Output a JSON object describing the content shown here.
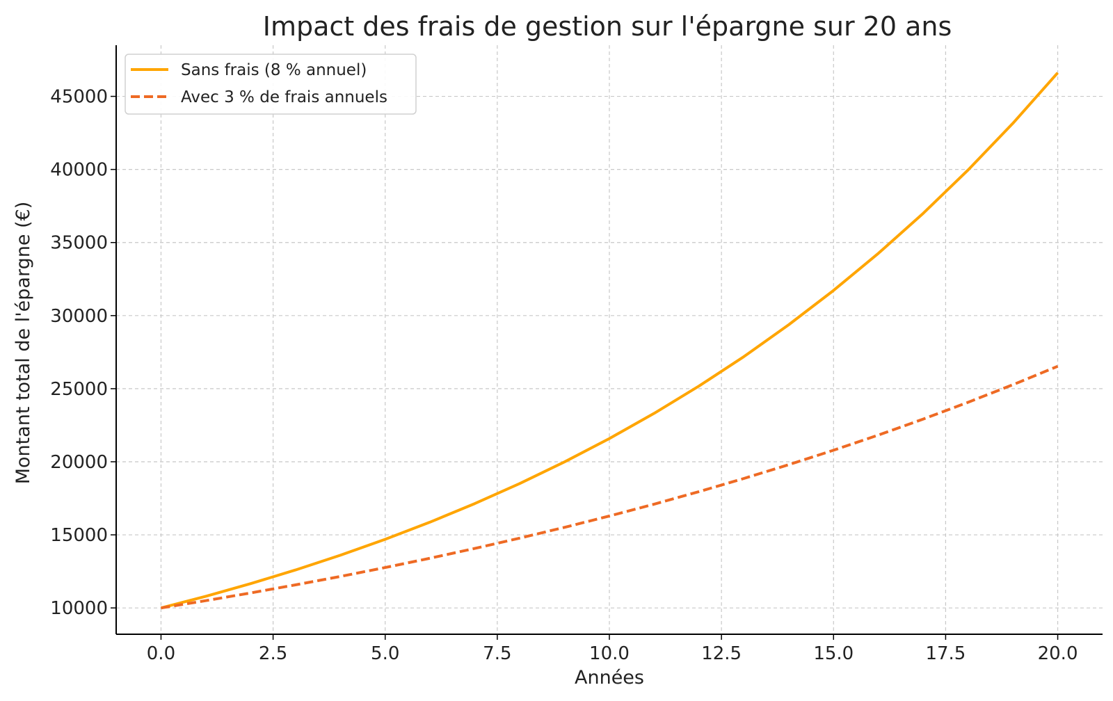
{
  "chart_data": {
    "type": "line",
    "title": "Impact des frais de gestion sur l'épargne sur 20 ans",
    "xlabel": "Années",
    "ylabel": "Montant total de l'épargne (€)",
    "xlim": [
      -1,
      21
    ],
    "ylim": [
      8200,
      48500
    ],
    "xticks": [
      0.0,
      2.5,
      5.0,
      7.5,
      10.0,
      12.5,
      15.0,
      17.5,
      20.0
    ],
    "xtick_labels": [
      "0.0",
      "2.5",
      "5.0",
      "7.5",
      "10.0",
      "12.5",
      "15.0",
      "17.5",
      "20.0"
    ],
    "yticks": [
      10000,
      15000,
      20000,
      25000,
      30000,
      35000,
      40000,
      45000
    ],
    "ytick_labels": [
      "10000",
      "15000",
      "20000",
      "25000",
      "30000",
      "35000",
      "40000",
      "45000"
    ],
    "grid": true,
    "legend_position": "top-left",
    "x": [
      0,
      1,
      2,
      3,
      4,
      5,
      6,
      7,
      8,
      9,
      10,
      11,
      12,
      13,
      14,
      15,
      16,
      17,
      18,
      19,
      20
    ],
    "series": [
      {
        "name": "Sans frais (8 % annuel)",
        "color": "#FFA500",
        "style": "solid",
        "values": [
          10000,
          10800,
          11664,
          12597,
          13605,
          14693,
          15869,
          17138,
          18509,
          19990,
          21589,
          23316,
          25182,
          27196,
          29372,
          31722,
          34259,
          37000,
          39960,
          43157,
          46610
        ]
      },
      {
        "name": "Avec 3 % de frais annuels",
        "color": "#EE6A24",
        "style": "dashed",
        "values": [
          10000,
          10500,
          11025,
          11576,
          12155,
          12763,
          13401,
          14071,
          14775,
          15513,
          16289,
          17103,
          17959,
          18856,
          19799,
          20789,
          21829,
          22920,
          24066,
          25270,
          26533
        ]
      }
    ]
  }
}
